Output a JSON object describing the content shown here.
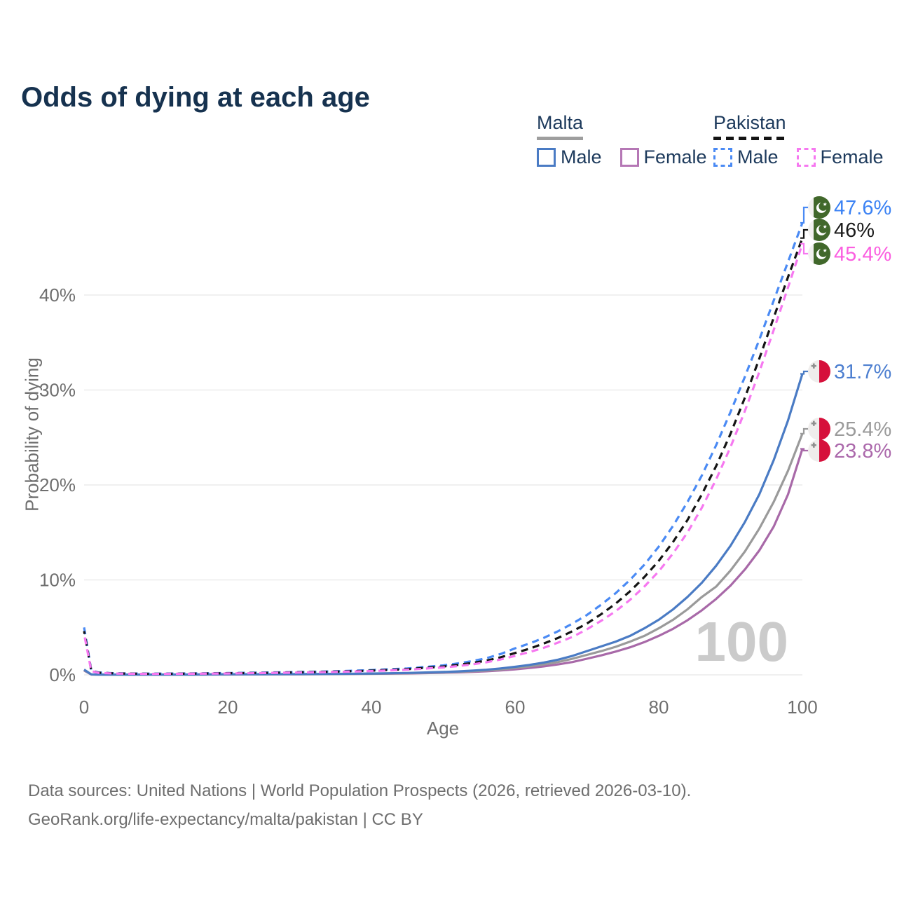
{
  "header": {
    "title": "Odds of dying at each age"
  },
  "legend": {
    "groups": [
      {
        "country": "Malta",
        "style": "solid",
        "underline_color": "#9e9e9e",
        "items": [
          {
            "label": "Male",
            "color": "#4a7bc4"
          },
          {
            "label": "Female",
            "color": "#b577b5"
          }
        ]
      },
      {
        "country": "Pakistan",
        "style": "dashed",
        "underline_color": "#141414",
        "items": [
          {
            "label": "Male",
            "color": "#4a8af4"
          },
          {
            "label": "Female",
            "color": "#f678f0"
          }
        ]
      }
    ]
  },
  "chart_data": {
    "type": "line",
    "title": "Odds of dying at each age",
    "xlabel": "Age",
    "ylabel": "Probability of dying",
    "grid": "horizontal",
    "legend_position": "top-right",
    "xlim": [
      0,
      100
    ],
    "ylim": [
      0,
      51
    ],
    "x_tick_values": [
      0,
      20,
      40,
      60,
      80,
      100
    ],
    "x_tick_labels": [
      "0",
      "20",
      "40",
      "60",
      "80",
      "100"
    ],
    "y_tick_values": [
      0,
      10,
      20,
      30,
      40
    ],
    "y_tick_labels": [
      "0%",
      "10%",
      "20%",
      "30%",
      "40%"
    ],
    "age_annotation": "100",
    "ages": [
      0,
      1,
      2,
      4,
      6,
      8,
      10,
      15,
      20,
      25,
      30,
      35,
      40,
      45,
      50,
      52,
      54,
      56,
      58,
      60,
      62,
      64,
      66,
      68,
      70,
      72,
      74,
      76,
      78,
      80,
      82,
      84,
      86,
      88,
      90,
      92,
      94,
      96,
      98,
      100
    ],
    "series": [
      {
        "id": "malta-female",
        "country": "Malta",
        "sex": "Female",
        "style": "solid",
        "color": "#a869a8",
        "label_color": "#ab68ab",
        "flag": "mt",
        "end_label": "23.8%",
        "end_value": 23.8,
        "values": [
          0.45,
          0.04,
          0.02,
          0.02,
          0.02,
          0.02,
          0.02,
          0.03,
          0.04,
          0.05,
          0.06,
          0.08,
          0.11,
          0.15,
          0.22,
          0.26,
          0.31,
          0.38,
          0.47,
          0.58,
          0.72,
          0.89,
          1.1,
          1.35,
          1.7,
          2.05,
          2.45,
          2.9,
          3.45,
          4.1,
          4.85,
          5.75,
          6.8,
          8.0,
          9.4,
          11.1,
          13.1,
          15.6,
          19.0,
          23.8
        ]
      },
      {
        "id": "malta-all",
        "country": "Malta",
        "sex": "Both",
        "style": "solid",
        "color": "#9a9a9a",
        "label_color": "#9a9a9a",
        "flag": "mt",
        "end_label": "25.4%",
        "end_value": 25.4,
        "values": [
          0.5,
          0.04,
          0.03,
          0.02,
          0.02,
          0.02,
          0.02,
          0.03,
          0.05,
          0.06,
          0.07,
          0.09,
          0.12,
          0.17,
          0.26,
          0.31,
          0.38,
          0.46,
          0.57,
          0.72,
          0.89,
          1.1,
          1.35,
          1.7,
          2.1,
          2.5,
          2.95,
          3.5,
          4.1,
          4.9,
          5.8,
          6.9,
          8.2,
          9.3,
          11.0,
          13.0,
          15.4,
          18.2,
          21.5,
          25.4
        ]
      },
      {
        "id": "malta-male",
        "country": "Malta",
        "sex": "Male",
        "style": "solid",
        "color": "#4a7bc4",
        "label_color": "#4d7fd0",
        "flag": "mt",
        "end_label": "31.7%",
        "end_value": 31.7,
        "values": [
          0.55,
          0.05,
          0.03,
          0.02,
          0.02,
          0.02,
          0.02,
          0.04,
          0.06,
          0.07,
          0.08,
          0.1,
          0.14,
          0.2,
          0.3,
          0.36,
          0.44,
          0.54,
          0.68,
          0.85,
          1.05,
          1.3,
          1.6,
          2.0,
          2.5,
          3.0,
          3.5,
          4.1,
          4.9,
          5.8,
          6.9,
          8.2,
          9.7,
          11.5,
          13.6,
          16.1,
          19.0,
          22.6,
          26.8,
          31.7
        ]
      },
      {
        "id": "pakistan-male",
        "country": "Pakistan",
        "sex": "Male",
        "style": "dashed",
        "color": "#4a8af4",
        "label_color": "#3b82f4",
        "flag": "pk",
        "dash_offset": 0,
        "end_label": "47.6%",
        "end_value": 47.6,
        "values": [
          5.0,
          0.45,
          0.25,
          0.18,
          0.15,
          0.13,
          0.13,
          0.15,
          0.19,
          0.24,
          0.3,
          0.38,
          0.5,
          0.68,
          1.0,
          1.2,
          1.45,
          1.75,
          2.2,
          2.8,
          3.3,
          3.9,
          4.6,
          5.4,
          6.3,
          7.4,
          8.6,
          10.0,
          11.6,
          13.5,
          15.7,
          18.2,
          21.0,
          24.2,
          27.7,
          31.4,
          35.3,
          39.4,
          43.5,
          47.6
        ]
      },
      {
        "id": "pakistan-all",
        "country": "Pakistan",
        "sex": "Both",
        "style": "dashed",
        "color": "#141414",
        "label_color": "#1a1a1a",
        "flag": "pk",
        "dash_offset": 6,
        "end_label": "46%",
        "end_value": 46.0,
        "values": [
          4.6,
          0.42,
          0.23,
          0.16,
          0.13,
          0.12,
          0.11,
          0.13,
          0.17,
          0.21,
          0.27,
          0.34,
          0.44,
          0.6,
          0.88,
          1.05,
          1.25,
          1.5,
          1.85,
          2.3,
          2.75,
          3.3,
          3.9,
          4.6,
          5.4,
          6.4,
          7.5,
          8.8,
          10.3,
          12.0,
          14.0,
          16.3,
          19.0,
          22.0,
          25.4,
          29.2,
          33.3,
          37.6,
          41.9,
          46.0
        ]
      },
      {
        "id": "pakistan-female",
        "country": "Pakistan",
        "sex": "Female",
        "style": "dashed",
        "color": "#f678f0",
        "label_color": "#fb5ee0",
        "flag": "pk",
        "dash_offset": 12,
        "end_label": "45.4%",
        "end_value": 45.4,
        "values": [
          4.3,
          0.4,
          0.21,
          0.15,
          0.12,
          0.1,
          0.1,
          0.12,
          0.15,
          0.19,
          0.24,
          0.31,
          0.4,
          0.54,
          0.78,
          0.92,
          1.1,
          1.32,
          1.62,
          2.0,
          2.4,
          2.85,
          3.4,
          4.0,
          4.8,
          5.7,
          6.7,
          7.9,
          9.3,
          10.9,
          12.8,
          15.0,
          17.6,
          20.6,
          24.0,
          27.8,
          31.9,
          36.3,
          40.8,
          45.4
        ]
      }
    ]
  },
  "footer": {
    "line1": "Data sources: United Nations | World Population Prospects (2026, retrieved 2026-03-10).",
    "line2": "GeoRank.org/life-expectancy/malta/pakistan | CC BY"
  }
}
